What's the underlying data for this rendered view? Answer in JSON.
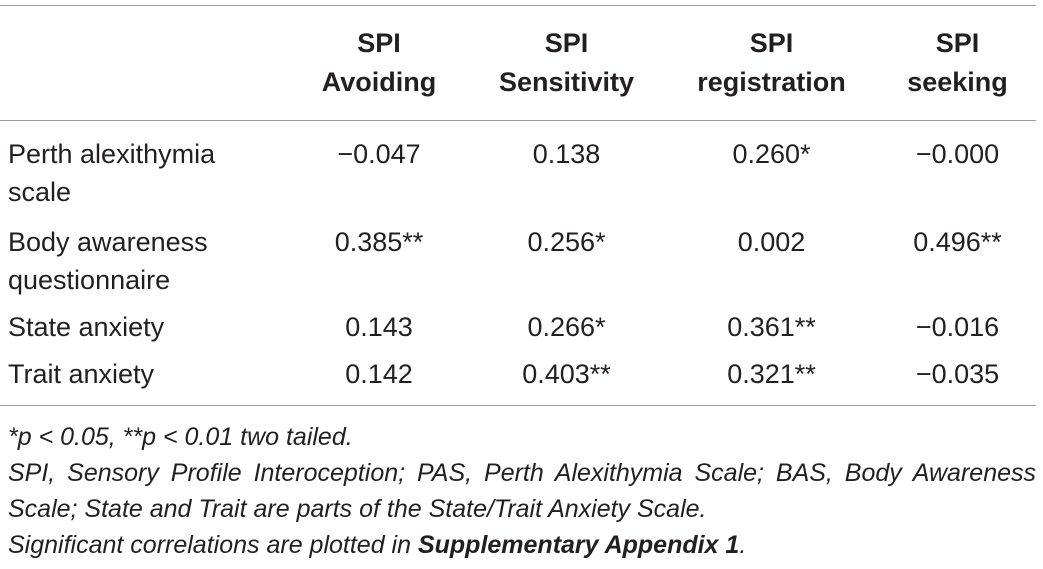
{
  "table": {
    "headers": [
      {
        "line1": "",
        "line2": ""
      },
      {
        "line1": "SPI",
        "line2": "Avoiding"
      },
      {
        "line1": "SPI",
        "line2": "Sensitivity"
      },
      {
        "line1": "SPI",
        "line2": "registration"
      },
      {
        "line1": "SPI",
        "line2": "seeking"
      }
    ],
    "rows": [
      {
        "label_line1": "Perth alexithymia",
        "label_line2": "scale",
        "cells": [
          "−0.047",
          "0.138",
          "0.260*",
          "−0.000"
        ]
      },
      {
        "label_line1": "Body awareness",
        "label_line2": "questionnaire",
        "cells": [
          "0.385**",
          "0.256*",
          "0.002",
          "0.496**"
        ]
      },
      {
        "label_line1": "State anxiety",
        "label_line2": "",
        "cells": [
          "0.143",
          "0.266*",
          "0.361**",
          "−0.016"
        ]
      },
      {
        "label_line1": "Trait anxiety",
        "label_line2": "",
        "cells": [
          "0.142",
          "0.403**",
          "0.321**",
          "−0.035"
        ]
      }
    ]
  },
  "notes": {
    "significance": "*p < 0.05, **p < 0.01 two tailed.",
    "abbreviations": "SPI, Sensory Profile Interoception; PAS, Perth Alexithymia Scale; BAS, Body Awareness Scale; State and Trait are parts of the State/Trait Anxiety Scale.",
    "appendix_prefix": "Significant correlations are plotted in ",
    "appendix_bold": "Supplementary Appendix 1",
    "appendix_suffix": "."
  }
}
